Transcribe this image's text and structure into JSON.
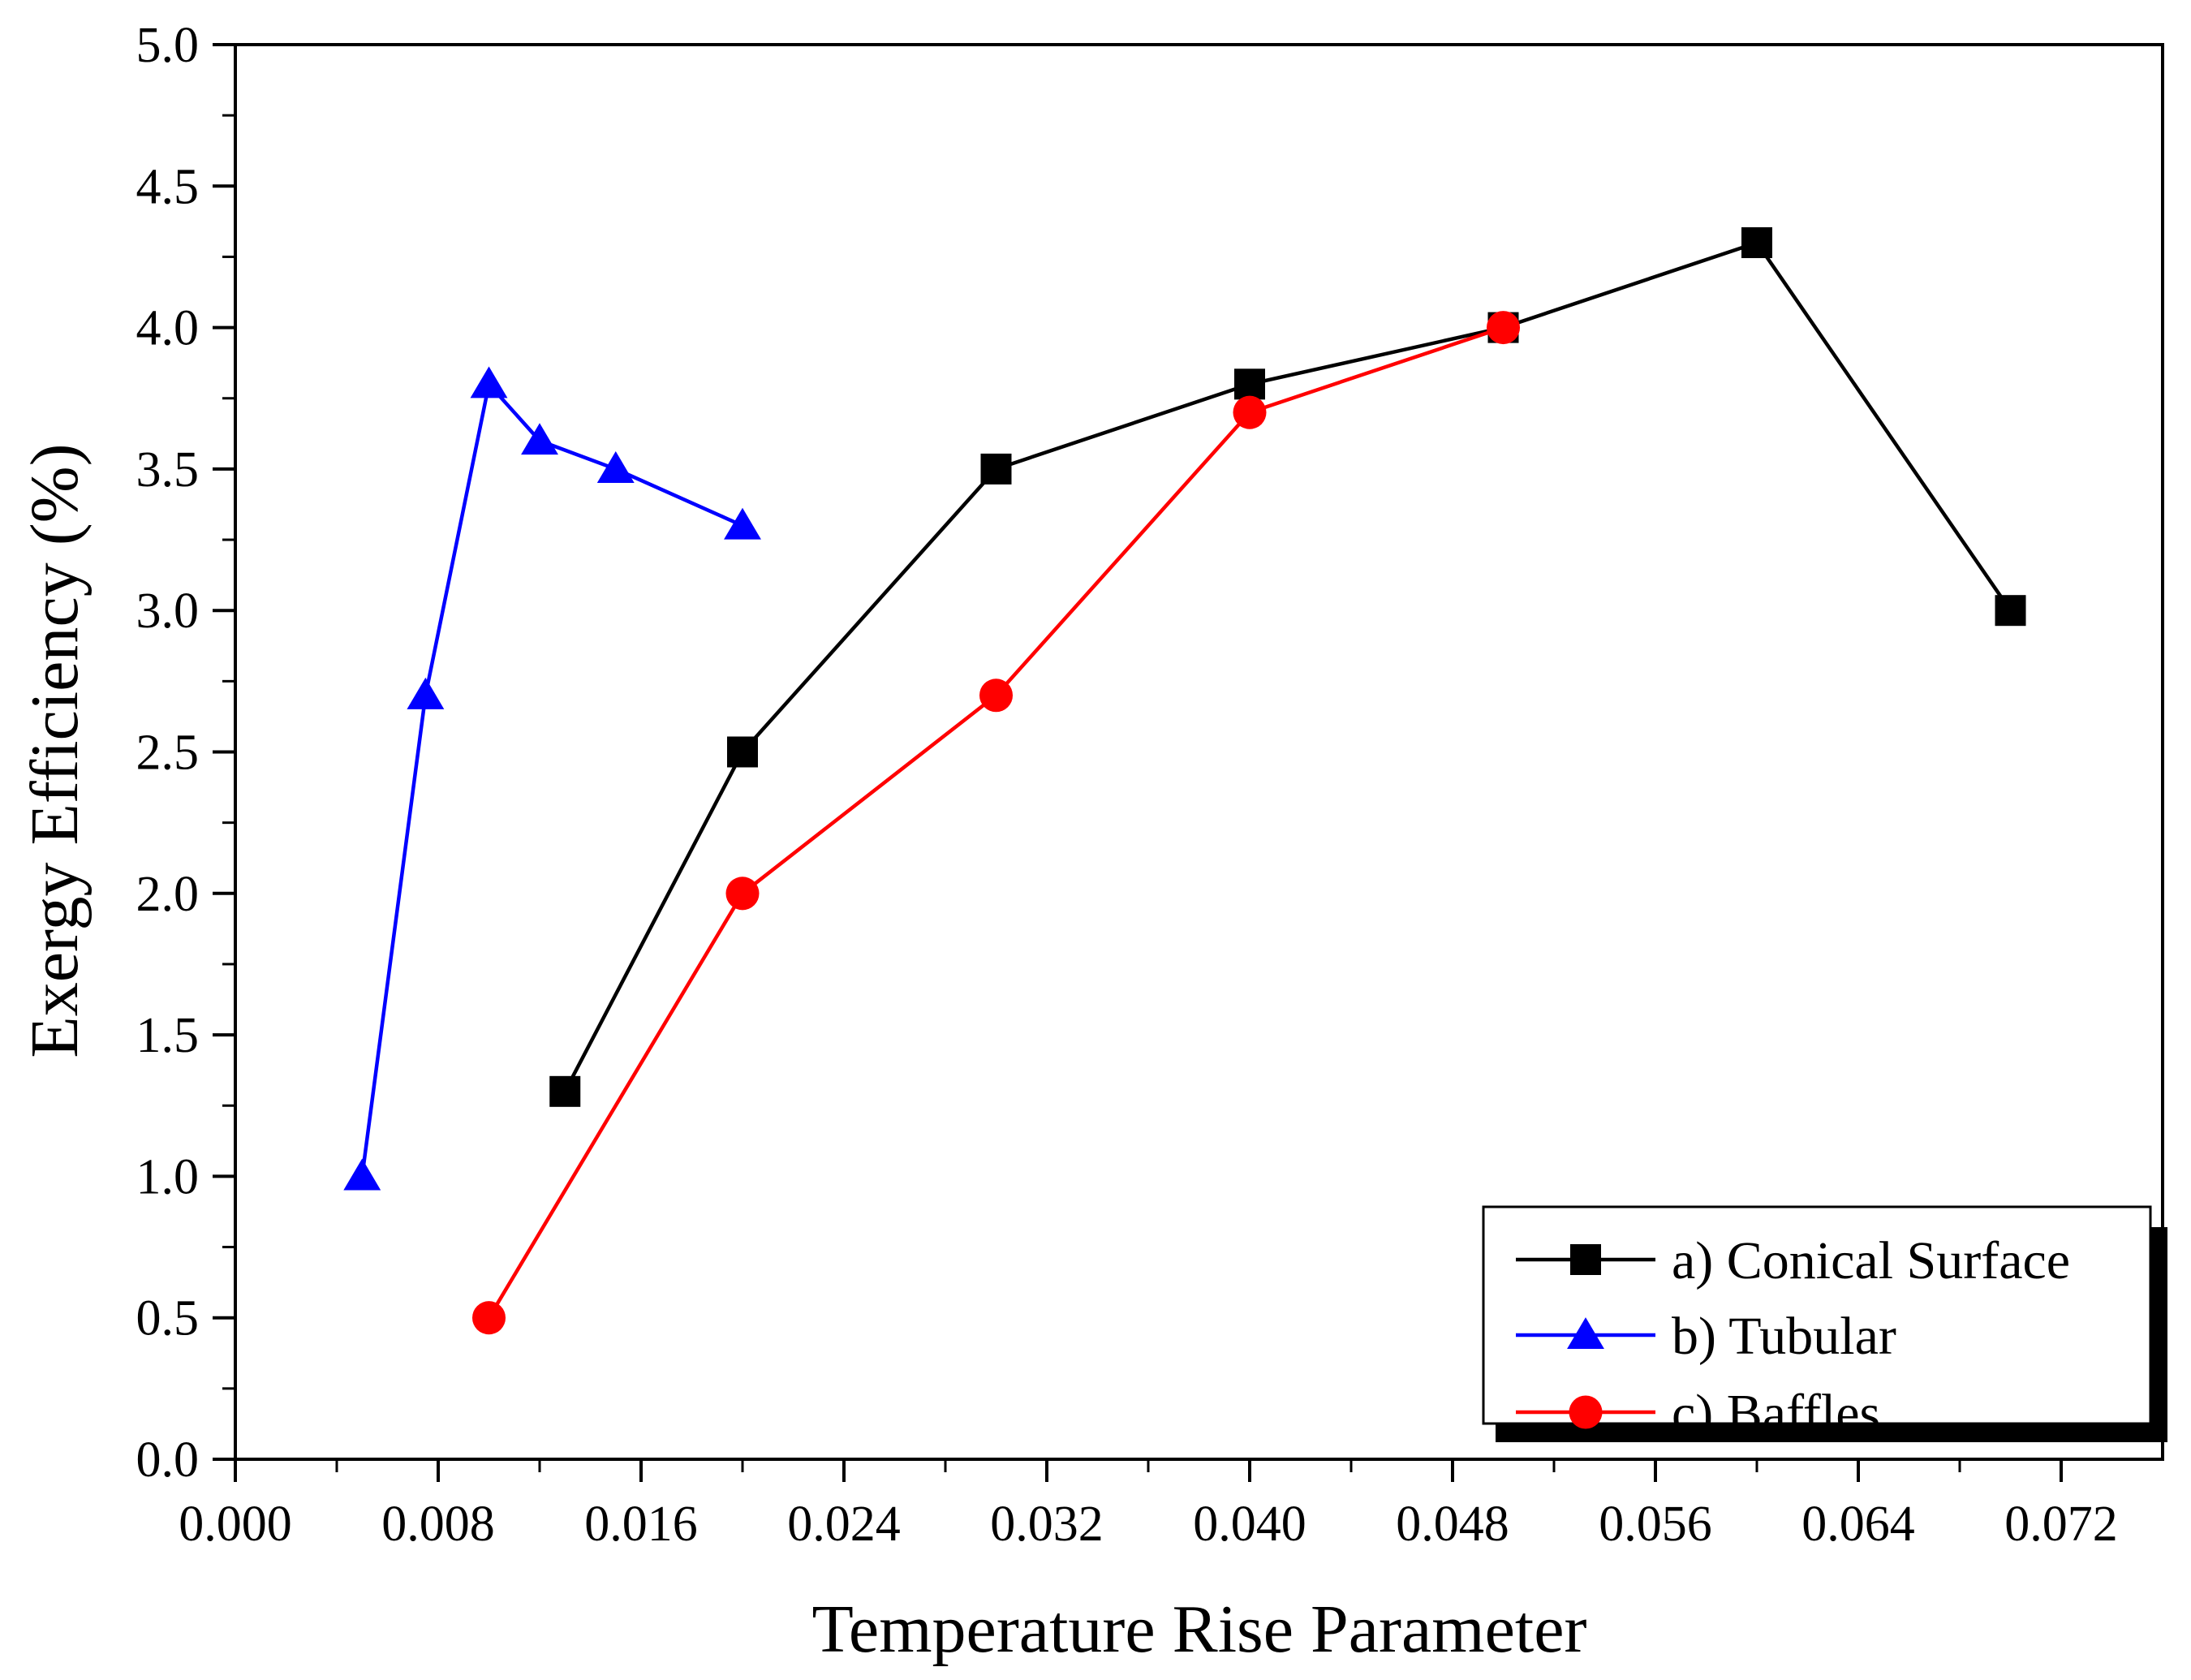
{
  "chart_data": {
    "type": "line",
    "title": "",
    "xlabel": "Temperature Rise Parameter",
    "ylabel": "Exergy Efficiency (%)",
    "xlim": [
      0.0,
      0.076
    ],
    "ylim": [
      0.0,
      5.0
    ],
    "x_ticks": [
      0.0,
      0.008,
      0.016,
      0.024,
      0.032,
      0.04,
      0.048,
      0.056,
      0.064,
      0.072
    ],
    "x_tick_labels": [
      "0.000",
      "0.008",
      "0.016",
      "0.024",
      "0.032",
      "0.040",
      "0.048",
      "0.056",
      "0.064",
      "0.072"
    ],
    "y_ticks": [
      0.0,
      0.5,
      1.0,
      1.5,
      2.0,
      2.5,
      3.0,
      3.5,
      4.0,
      4.5,
      5.0
    ],
    "y_tick_labels": [
      "0.0",
      "0.5",
      "1.0",
      "1.5",
      "2.0",
      "2.5",
      "3.0",
      "3.5",
      "4.0",
      "4.5",
      "5.0"
    ],
    "grid": false,
    "legend_position": "bottom-right",
    "series": [
      {
        "name": "a) Conical Surface",
        "color": "#000000",
        "marker": "square",
        "x": [
          0.013,
          0.02,
          0.03,
          0.04,
          0.05,
          0.06,
          0.07
        ],
        "y": [
          1.3,
          2.5,
          3.5,
          3.8,
          4.0,
          4.3,
          3.0
        ]
      },
      {
        "name": "b) Tubular",
        "color": "#0000ff",
        "marker": "triangle",
        "x": [
          0.005,
          0.0075,
          0.01,
          0.012,
          0.015,
          0.02
        ],
        "y": [
          1.0,
          2.7,
          3.8,
          3.6,
          3.5,
          3.3
        ]
      },
      {
        "name": "c) Baffles",
        "color": "#ff0000",
        "marker": "circle",
        "x": [
          0.01,
          0.02,
          0.03,
          0.04,
          0.05
        ],
        "y": [
          0.5,
          2.0,
          2.7,
          3.7,
          4.0
        ]
      }
    ]
  }
}
